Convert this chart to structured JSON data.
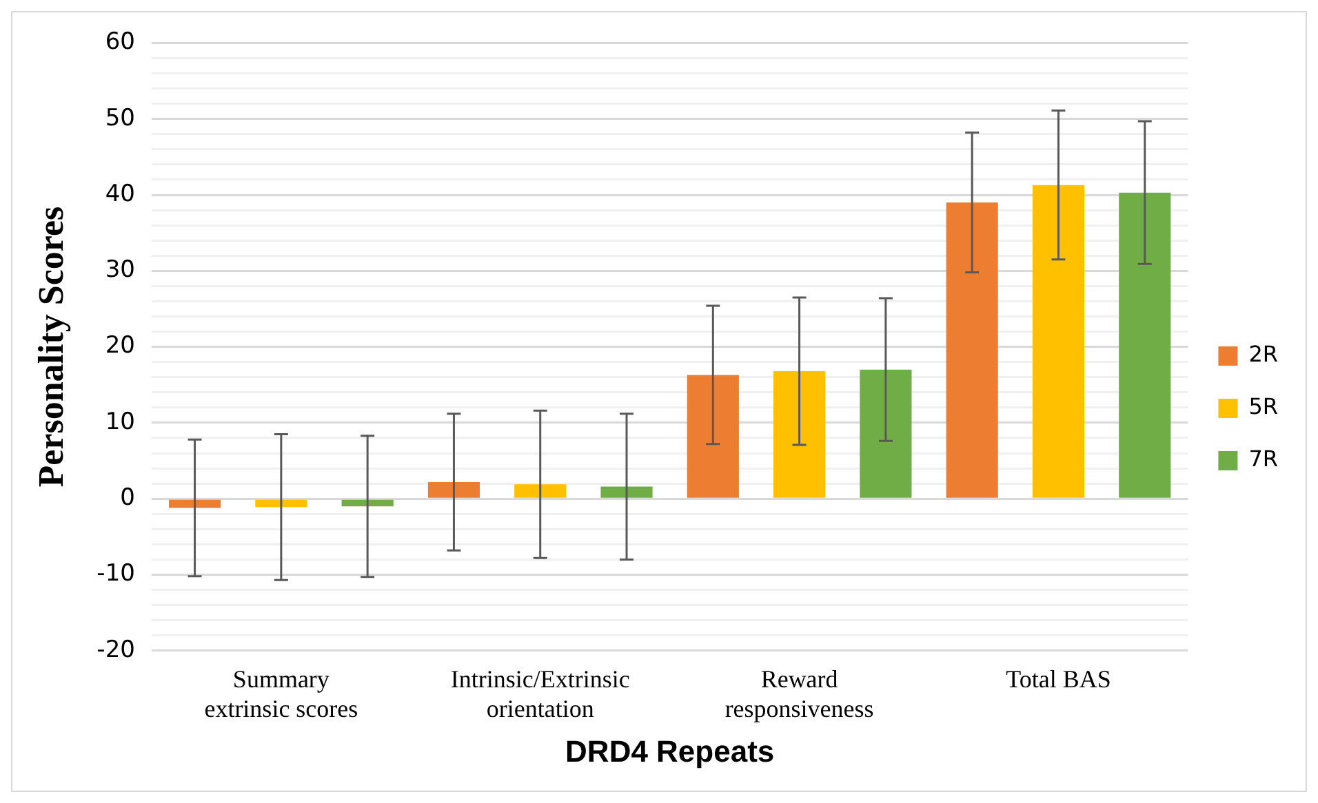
{
  "chart_data": {
    "type": "bar",
    "xlabel": "DRD4 Repeats",
    "ylabel": "Personality Scores",
    "categories": [
      "Summary extrinsic scores",
      "Intrinsic/Extrinsic orientation",
      "Reward responsiveness",
      "Total BAS"
    ],
    "series": [
      {
        "name": "2R",
        "color": "#ed7d31",
        "values": [
          -1.2,
          2.2,
          16.3,
          39.0
        ],
        "errors": [
          9.0,
          9.0,
          9.1,
          9.2
        ]
      },
      {
        "name": "5R",
        "color": "#ffc000",
        "values": [
          -1.1,
          1.9,
          16.8,
          41.3
        ],
        "errors": [
          9.6,
          9.7,
          9.7,
          9.8
        ]
      },
      {
        "name": "7R",
        "color": "#70ad47",
        "values": [
          -1.0,
          1.6,
          17.0,
          40.3
        ],
        "errors": [
          9.3,
          9.6,
          9.4,
          9.4
        ]
      }
    ],
    "ylim": [
      -20,
      60
    ],
    "yticks": [
      -20,
      {
        "value": -18,
        "label": null
      },
      {
        "value": -16,
        "label": null
      },
      {
        "value": -14,
        "label": null
      },
      {
        "value": -12,
        "label": null
      },
      -10,
      {
        "value": -8,
        "label": null
      },
      {
        "value": -6,
        "label": null
      },
      {
        "value": -4,
        "label": null
      },
      {
        "value": -2,
        "label": null
      },
      0,
      {
        "value": 2,
        "label": null
      },
      {
        "value": 4,
        "label": null
      },
      {
        "value": 6,
        "label": null
      },
      {
        "value": 8,
        "label": null
      },
      10,
      {
        "value": 12,
        "label": null
      },
      {
        "value": 14,
        "label": null
      },
      {
        "value": 16,
        "label": null
      },
      {
        "value": 18,
        "label": null
      },
      20,
      {
        "value": 22,
        "label": null
      },
      {
        "value": 24,
        "label": null
      },
      {
        "value": 26,
        "label": null
      },
      {
        "value": 28,
        "label": null
      },
      30,
      {
        "value": 32,
        "label": null
      },
      {
        "value": 34,
        "label": null
      },
      {
        "value": 36,
        "label": null
      },
      {
        "value": 38,
        "label": null
      },
      40,
      {
        "value": 42,
        "label": null
      },
      {
        "value": 44,
        "label": null
      },
      {
        "value": 46,
        "label": null
      },
      {
        "value": 48,
        "label": null
      },
      50,
      {
        "value": 52,
        "label": null
      },
      {
        "value": 54,
        "label": null
      },
      {
        "value": 56,
        "label": null
      },
      {
        "value": 58,
        "label": null
      },
      60
    ],
    "grid": "y",
    "legend": "right"
  }
}
